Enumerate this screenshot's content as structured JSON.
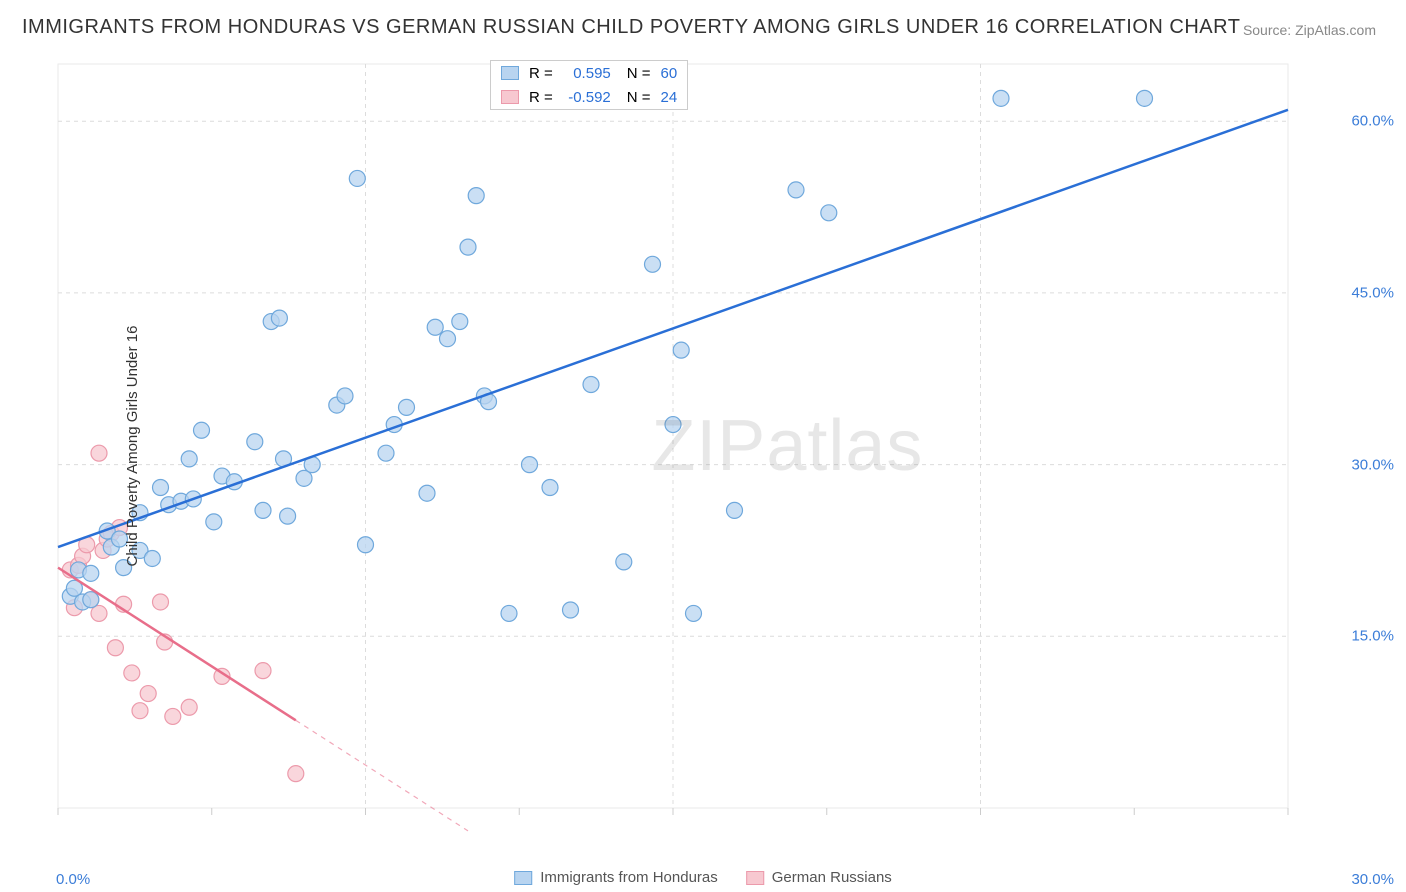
{
  "title": "IMMIGRANTS FROM HONDURAS VS GERMAN RUSSIAN CHILD POVERTY AMONG GIRLS UNDER 16 CORRELATION CHART",
  "source": "Source: ZipAtlas.com",
  "watermark": "ZIPatlas",
  "ylabel": "Child Poverty Among Girls Under 16",
  "chart": {
    "type": "scatter-with-regression",
    "xlim": [
      0,
      30
    ],
    "ylim": [
      0,
      65
    ],
    "xtick_labels": [
      "0.0%",
      "30.0%"
    ],
    "ytick_values": [
      15,
      30,
      45,
      60
    ],
    "ytick_labels": [
      "15.0%",
      "30.0%",
      "45.0%",
      "60.0%"
    ],
    "background_color": "#ffffff",
    "grid_color": "#dcdcdc",
    "grid_dash": "4,4",
    "border_color": "#eaeaea",
    "tick_mark_color": "#cccccc",
    "axis_label_color": "#3b7dd8",
    "marker_radius": 8,
    "marker_stroke_width": 1.2,
    "line_width": 2.5
  },
  "series_a": {
    "name": "Immigrants from Honduras",
    "color_fill": "#b8d4f0",
    "color_stroke": "#6fa8dc",
    "line_color": "#2a6fd6",
    "R": "0.595",
    "N": "60",
    "points": [
      [
        0.3,
        18.5
      ],
      [
        0.4,
        19.2
      ],
      [
        0.5,
        20.8
      ],
      [
        0.6,
        18.0
      ],
      [
        0.8,
        18.2
      ],
      [
        0.8,
        20.5
      ],
      [
        1.3,
        22.8
      ],
      [
        1.2,
        24.2
      ],
      [
        1.5,
        23.5
      ],
      [
        1.6,
        21.0
      ],
      [
        2.0,
        22.5
      ],
      [
        2.0,
        25.8
      ],
      [
        2.3,
        21.8
      ],
      [
        2.5,
        28.0
      ],
      [
        2.7,
        26.5
      ],
      [
        3.0,
        26.8
      ],
      [
        3.2,
        30.5
      ],
      [
        3.3,
        27.0
      ],
      [
        3.5,
        33.0
      ],
      [
        3.8,
        25.0
      ],
      [
        4.0,
        29.0
      ],
      [
        4.3,
        28.5
      ],
      [
        4.8,
        32.0
      ],
      [
        5.0,
        26.0
      ],
      [
        5.2,
        42.5
      ],
      [
        5.4,
        42.8
      ],
      [
        5.5,
        30.5
      ],
      [
        5.6,
        25.5
      ],
      [
        6.0,
        28.8
      ],
      [
        6.2,
        30.0
      ],
      [
        6.8,
        35.2
      ],
      [
        7.0,
        36.0
      ],
      [
        7.3,
        55.0
      ],
      [
        7.5,
        23.0
      ],
      [
        8.0,
        31.0
      ],
      [
        8.2,
        33.5
      ],
      [
        8.5,
        35.0
      ],
      [
        9.0,
        27.5
      ],
      [
        9.2,
        42.0
      ],
      [
        9.5,
        41.0
      ],
      [
        9.8,
        42.5
      ],
      [
        10.0,
        49.0
      ],
      [
        10.2,
        53.5
      ],
      [
        10.4,
        36.0
      ],
      [
        10.5,
        35.5
      ],
      [
        11.0,
        17.0
      ],
      [
        11.5,
        30.0
      ],
      [
        12.0,
        28.0
      ],
      [
        12.5,
        17.3
      ],
      [
        13.0,
        37.0
      ],
      [
        13.8,
        21.5
      ],
      [
        14.5,
        47.5
      ],
      [
        15.0,
        33.5
      ],
      [
        15.2,
        40.0
      ],
      [
        15.5,
        17.0
      ],
      [
        16.5,
        26.0
      ],
      [
        18.0,
        54.0
      ],
      [
        18.8,
        52.0
      ],
      [
        23.0,
        62.0
      ],
      [
        26.5,
        62.0
      ]
    ],
    "trend": {
      "x1": 0,
      "y1": 22.8,
      "x2": 30,
      "y2": 61.0,
      "solid_until_x": 30
    }
  },
  "series_b": {
    "name": "German Russians",
    "color_fill": "#f7c8d0",
    "color_stroke": "#ec9aab",
    "line_color": "#e86e8a",
    "R": "-0.592",
    "N": "24",
    "points": [
      [
        0.3,
        20.8
      ],
      [
        0.4,
        17.5
      ],
      [
        0.5,
        21.2
      ],
      [
        0.6,
        22.0
      ],
      [
        0.7,
        23.0
      ],
      [
        0.8,
        18.2
      ],
      [
        1.0,
        31.0
      ],
      [
        1.0,
        17.0
      ],
      [
        1.1,
        22.5
      ],
      [
        1.2,
        23.5
      ],
      [
        1.3,
        24.0
      ],
      [
        1.4,
        14.0
      ],
      [
        1.5,
        24.5
      ],
      [
        1.6,
        17.8
      ],
      [
        1.8,
        11.8
      ],
      [
        2.0,
        8.5
      ],
      [
        2.2,
        10.0
      ],
      [
        2.5,
        18.0
      ],
      [
        2.6,
        14.5
      ],
      [
        2.8,
        8.0
      ],
      [
        3.2,
        8.8
      ],
      [
        4.0,
        11.5
      ],
      [
        5.0,
        12.0
      ],
      [
        5.8,
        3.0
      ]
    ],
    "trend": {
      "x1": 0,
      "y1": 21.0,
      "x2": 10.0,
      "y2": -2.0,
      "solid_until_x": 5.8
    }
  },
  "stats_legend": {
    "r_label": "R =",
    "n_label": "N ="
  }
}
